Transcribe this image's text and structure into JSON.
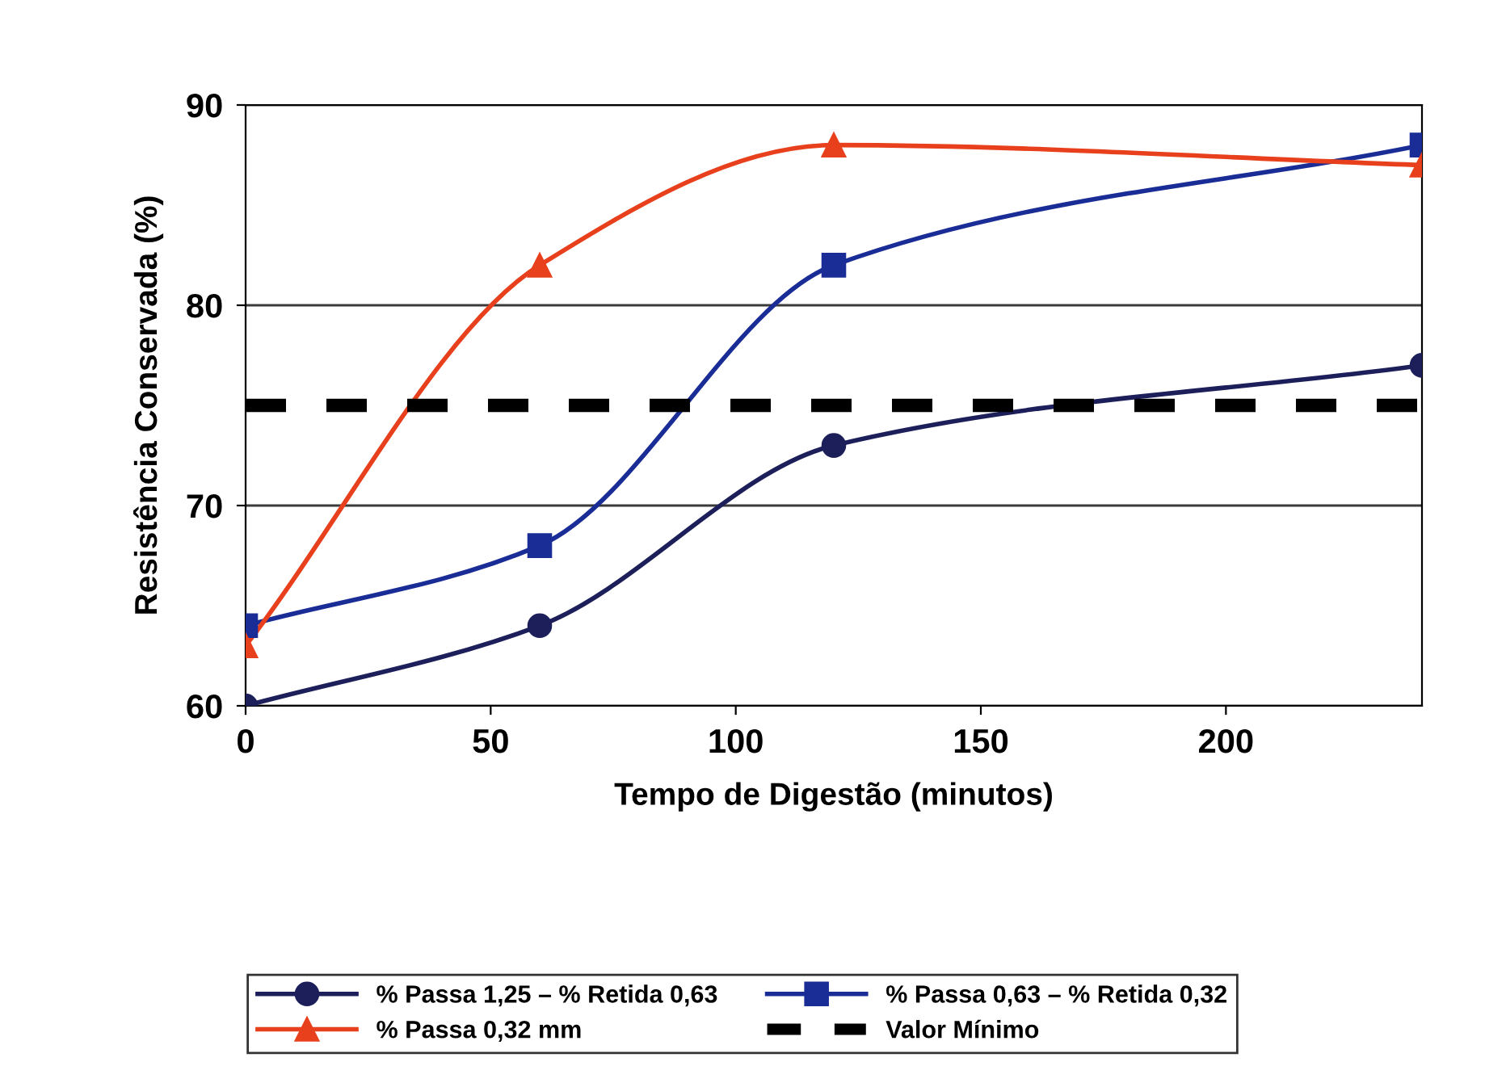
{
  "chart_data": {
    "type": "line",
    "xlabel": "Tempo de Digestão (minutos)",
    "ylabel": "Resistência Conservada (%)",
    "xlim": [
      0,
      240
    ],
    "xticks": [
      0,
      50,
      100,
      150,
      200
    ],
    "ylim": [
      60,
      90
    ],
    "yticks": [
      60,
      70,
      80,
      90
    ],
    "grid": "y",
    "legend": "bottom",
    "series": [
      {
        "name": "% Passa 1,25 – % Retida 0,63",
        "color": "#1c1f5a",
        "marker": "circle",
        "x": [
          0,
          60,
          120,
          240
        ],
        "values": [
          60,
          64,
          73,
          77
        ]
      },
      {
        "name": "% Passa 0,63 – % Retida 0,32",
        "color": "#1a2d96",
        "marker": "square",
        "x": [
          0,
          60,
          120,
          240
        ],
        "values": [
          64,
          68,
          82,
          88
        ]
      },
      {
        "name": "% Passa 0,32 mm",
        "color": "#e8401c",
        "marker": "triangle",
        "x": [
          0,
          60,
          120,
          240
        ],
        "values": [
          63,
          82,
          88,
          87
        ]
      },
      {
        "name": "Valor Mínimo",
        "color": "#000000",
        "marker": "none",
        "line_style": "dashed",
        "x": [
          0,
          240
        ],
        "values": [
          75,
          75
        ]
      }
    ]
  }
}
